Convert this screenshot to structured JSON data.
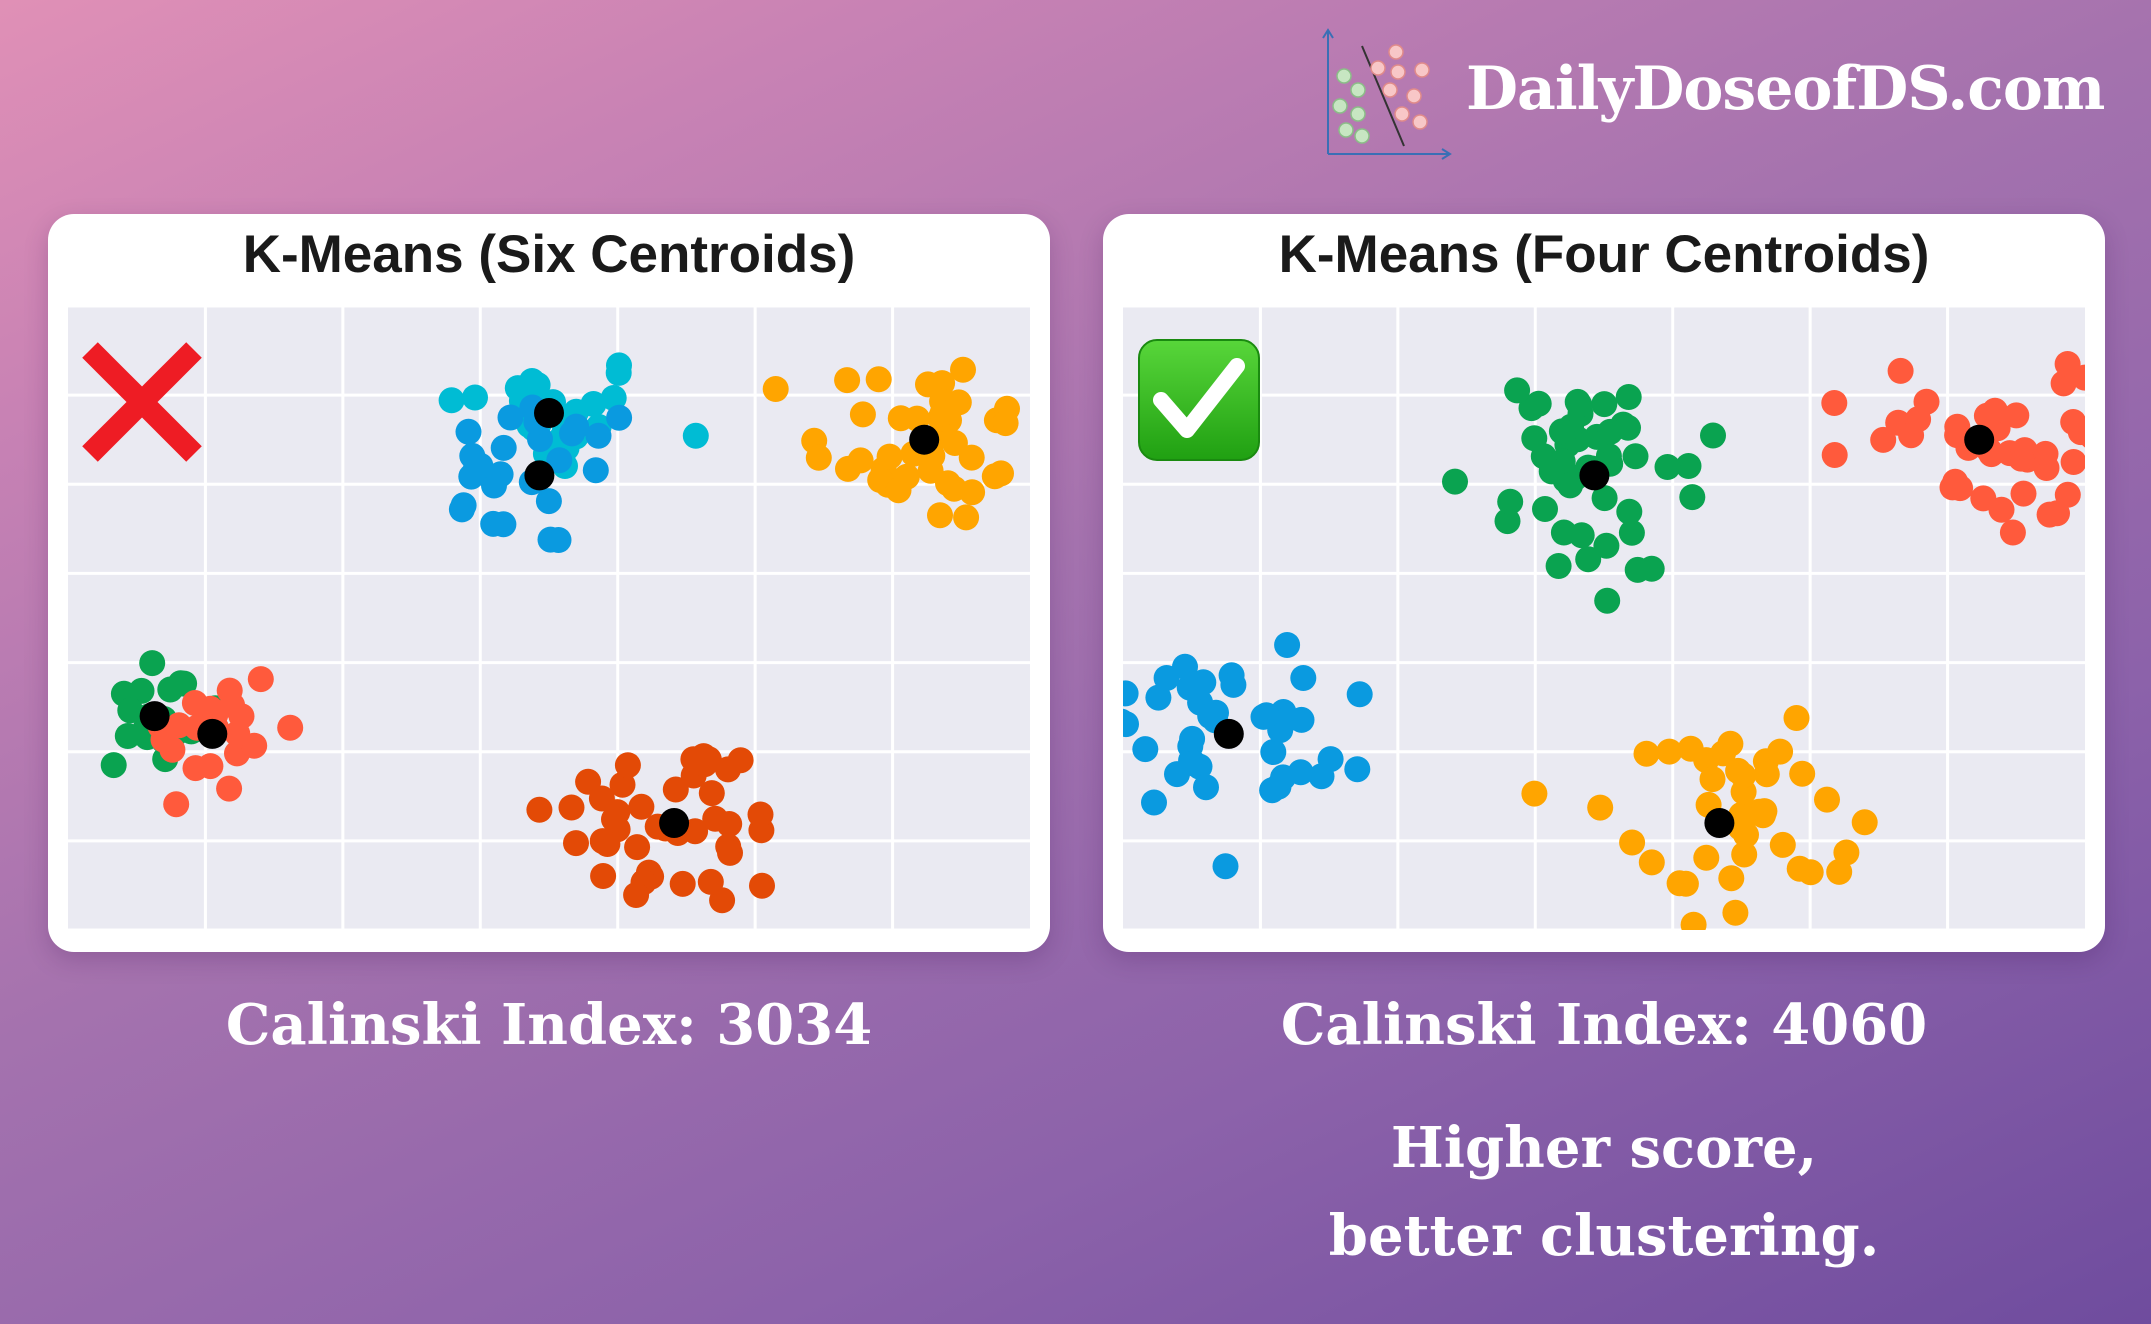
{
  "brand": {
    "text": "DailyDoseofDS.com"
  },
  "chart_data": [
    {
      "type": "scatter",
      "title": "K-Means (Six Centroids)",
      "xlim": [
        0,
        10
      ],
      "ylim": [
        0,
        7
      ],
      "badge": "cross-icon",
      "score_label": "Calinski Index: 3034",
      "clusters": [
        {
          "color": "#00bcd4",
          "centroid": [
            5.0,
            5.8
          ],
          "spread": [
            0.55,
            0.35
          ],
          "n": 26
        },
        {
          "color": "#0a9ae0",
          "centroid": [
            4.9,
            5.1
          ],
          "spread": [
            0.55,
            0.45
          ],
          "n": 26
        },
        {
          "color": "#ffa500",
          "centroid": [
            8.9,
            5.5
          ],
          "spread": [
            0.6,
            0.5
          ],
          "n": 40
        },
        {
          "color": "#0aa350",
          "centroid": [
            0.9,
            2.4
          ],
          "spread": [
            0.35,
            0.4
          ],
          "n": 22
        },
        {
          "color": "#ff5a3c",
          "centroid": [
            1.5,
            2.2
          ],
          "spread": [
            0.35,
            0.45
          ],
          "n": 24
        },
        {
          "color": "#e34a06",
          "centroid": [
            6.3,
            1.2
          ],
          "spread": [
            0.65,
            0.5
          ],
          "n": 44
        }
      ]
    },
    {
      "type": "scatter",
      "title": "K-Means (Four Centroids)",
      "xlim": [
        0,
        10
      ],
      "ylim": [
        0,
        7
      ],
      "badge": "check-icon",
      "score_label": "Calinski Index: 4060",
      "clusters": [
        {
          "color": "#0aa350",
          "centroid": [
            4.9,
            5.1
          ],
          "spread": [
            0.6,
            0.6
          ],
          "n": 48
        },
        {
          "color": "#ff5a3c",
          "centroid": [
            8.9,
            5.5
          ],
          "spread": [
            0.6,
            0.5
          ],
          "n": 40
        },
        {
          "color": "#0a9ae0",
          "centroid": [
            1.1,
            2.2
          ],
          "spread": [
            0.6,
            0.5
          ],
          "n": 42
        },
        {
          "color": "#ffa500",
          "centroid": [
            6.2,
            1.2
          ],
          "spread": [
            0.6,
            0.55
          ],
          "n": 42
        }
      ]
    }
  ],
  "tagline": {
    "line1": "Higher score,",
    "line2": "better clustering."
  }
}
